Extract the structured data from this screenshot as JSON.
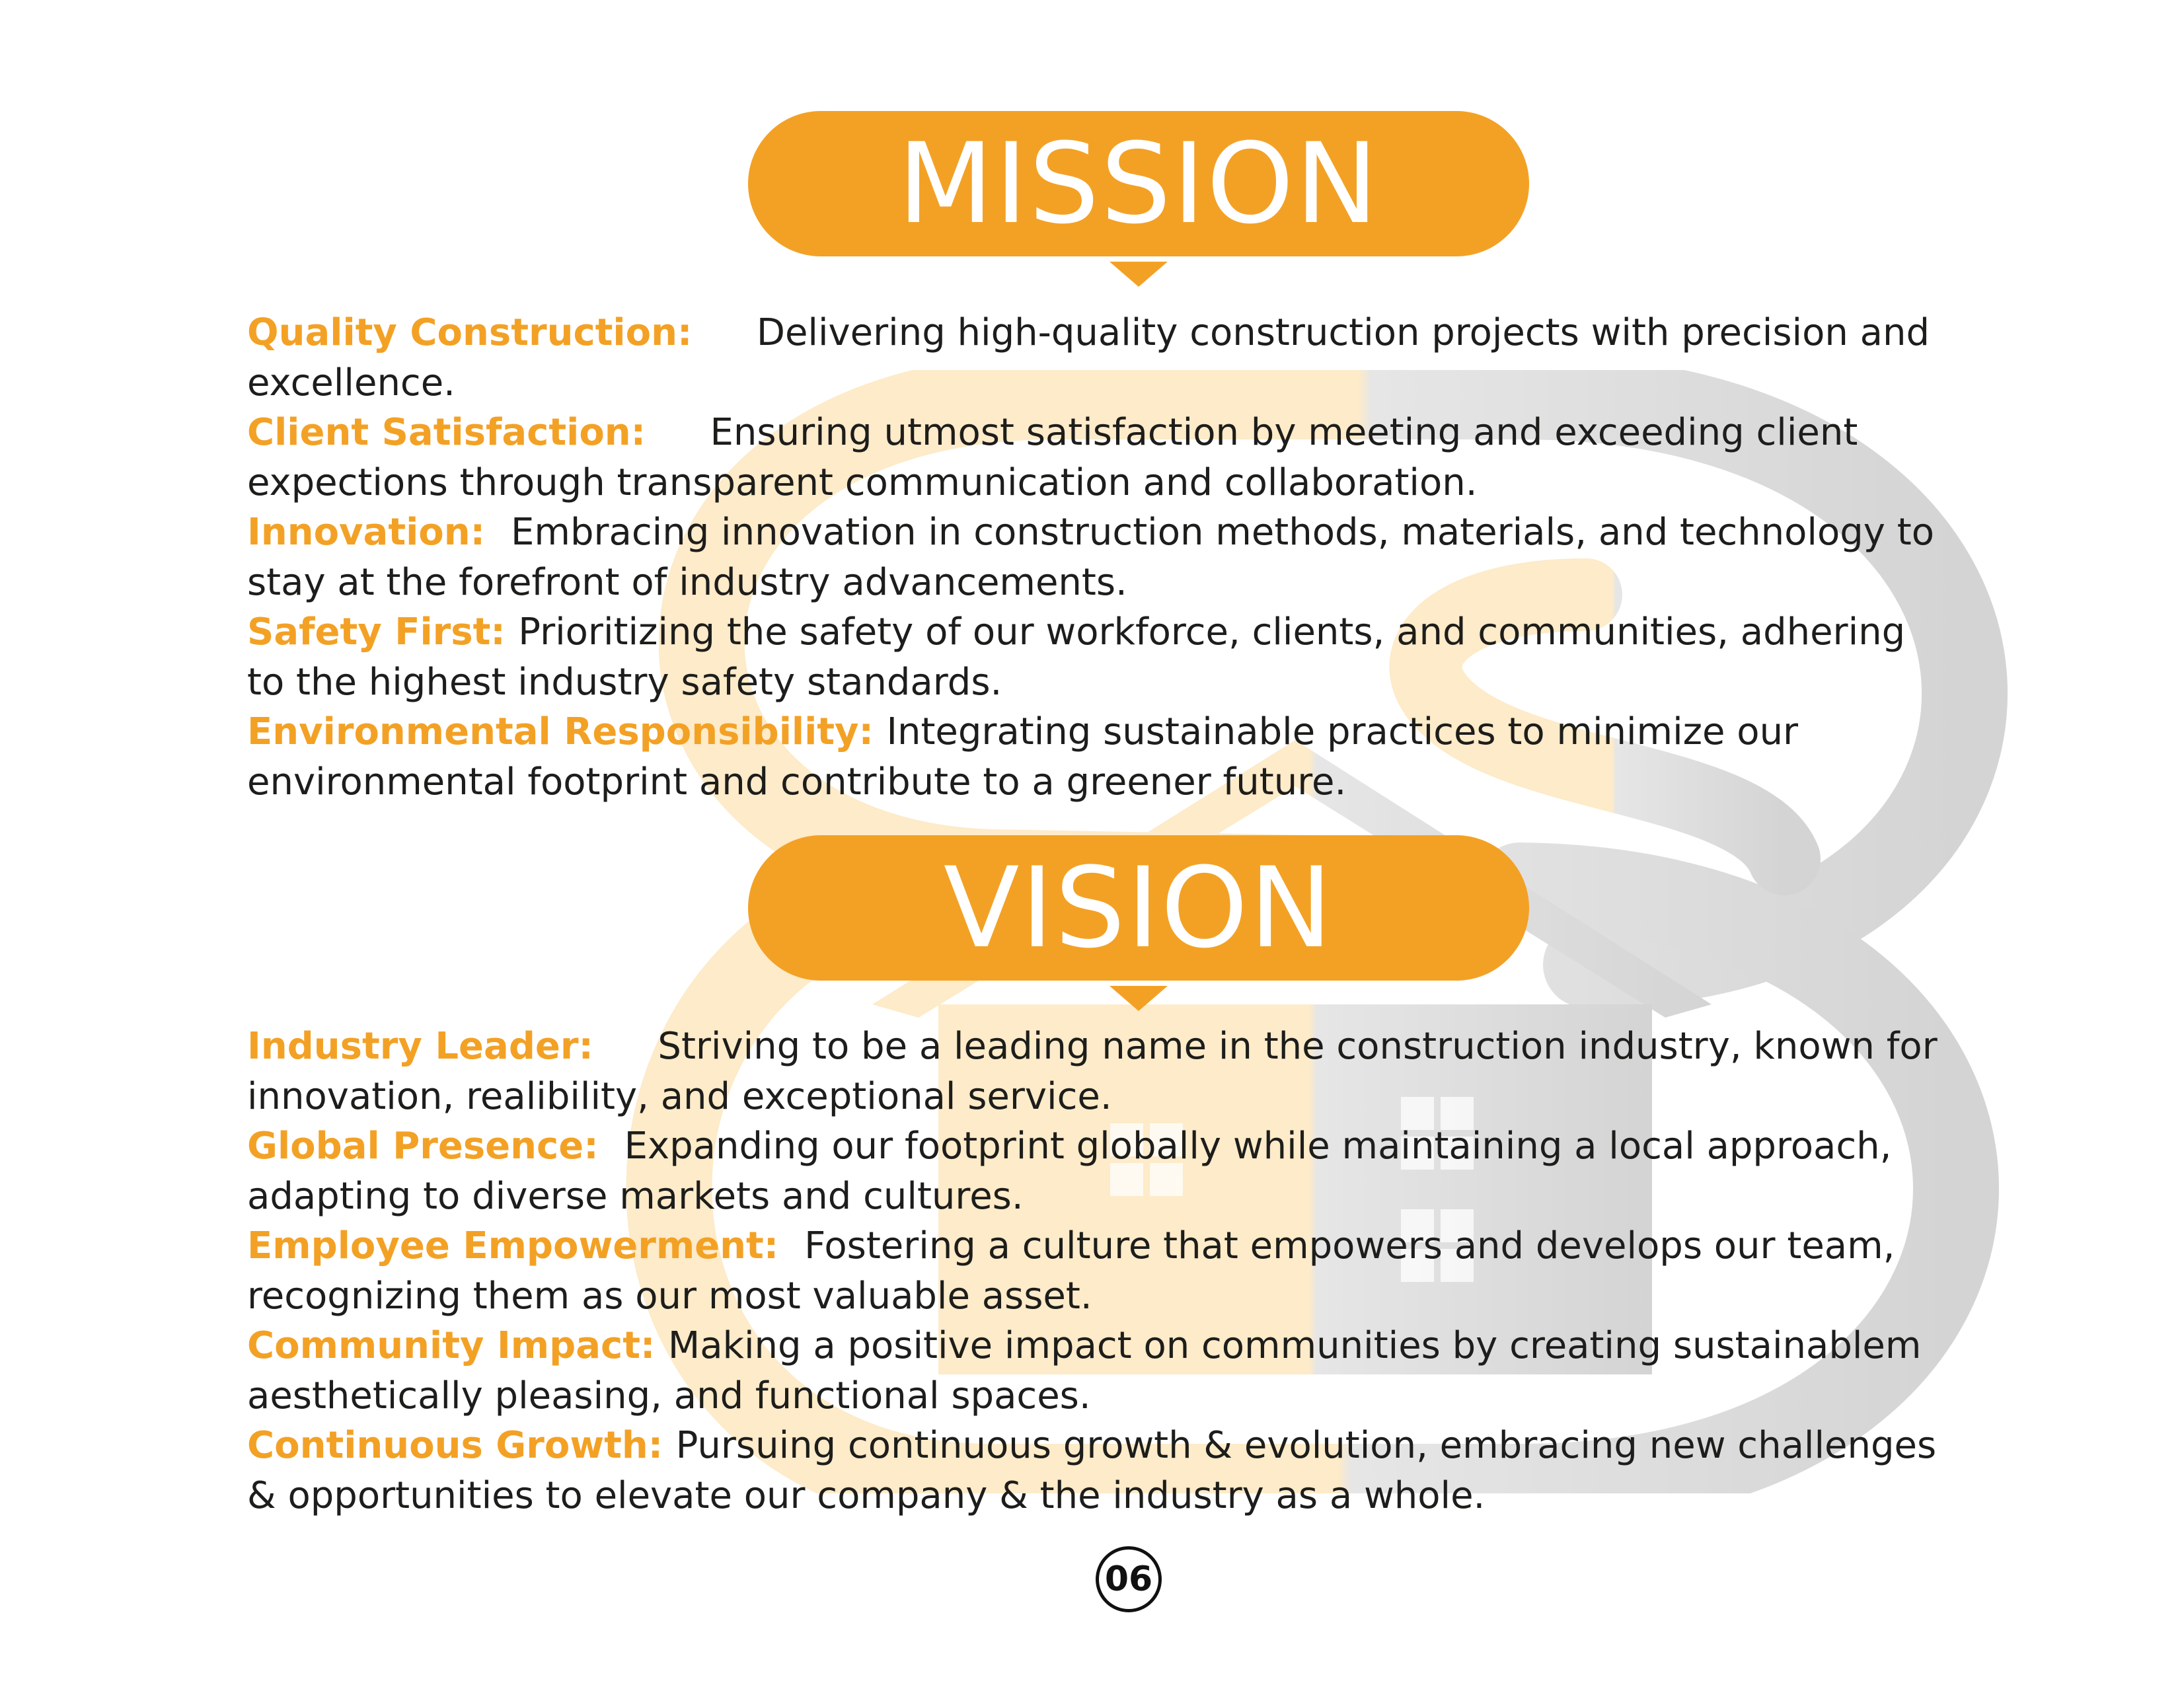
{
  "colors": {
    "accent": "#f3a125",
    "body_text": "#1d1d1b",
    "watermark_orange": "#fdebc9",
    "watermark_gray": "#d9d9d9"
  },
  "watermark": {
    "icon": "house-logo-watermark-icon"
  },
  "mission": {
    "title": "MISSION",
    "items": [
      {
        "label": "Quality Construction:     ",
        "text": "Delivering high-quality construction projects with precision and excellence."
      },
      {
        "label": "Client Satisfaction:     ",
        "text": "Ensuring utmost satisfaction by meeting and exceeding client expections through transparent communication and collaboration."
      },
      {
        "label": "Innovation:  ",
        "text": "Embracing innovation in construction methods, materials, and technology to stay at the forefront of industry advancements."
      },
      {
        "label": "Safety First: ",
        "text": "Prioritizing the safety of our workforce, clients, and communities, adhering to the highest industry safety standards."
      },
      {
        "label": "Environmental Responsibility: ",
        "text": "Integrating sustainable practices to minimize our environmental footprint and contribute to a greener future."
      }
    ]
  },
  "vision": {
    "title": "VISION",
    "items": [
      {
        "label": "Industry Leader:     ",
        "text": "Striving to be a leading name in the construction industry, known for innovation, realibility, and exceptional service."
      },
      {
        "label": "Global Presence:  ",
        "text": "Expanding our footprint globally while maintaining a local approach, adapting to diverse markets and cultures."
      },
      {
        "label": "Employee Empowerment:  ",
        "text": "Fostering a culture that empowers and develops our team, recognizing them as our most valuable asset."
      },
      {
        "label": "Community Impact: ",
        "text": "Making a positive impact on communities  by creating sustainablem aesthetically pleasing, and functional spaces."
      },
      {
        "label": "Continuous Growth: ",
        "text": "Pursuing continuous growth & evolution, embracing new challenges & opportunities to elevate our company & the industry as a whole."
      }
    ]
  },
  "page_number": "06"
}
